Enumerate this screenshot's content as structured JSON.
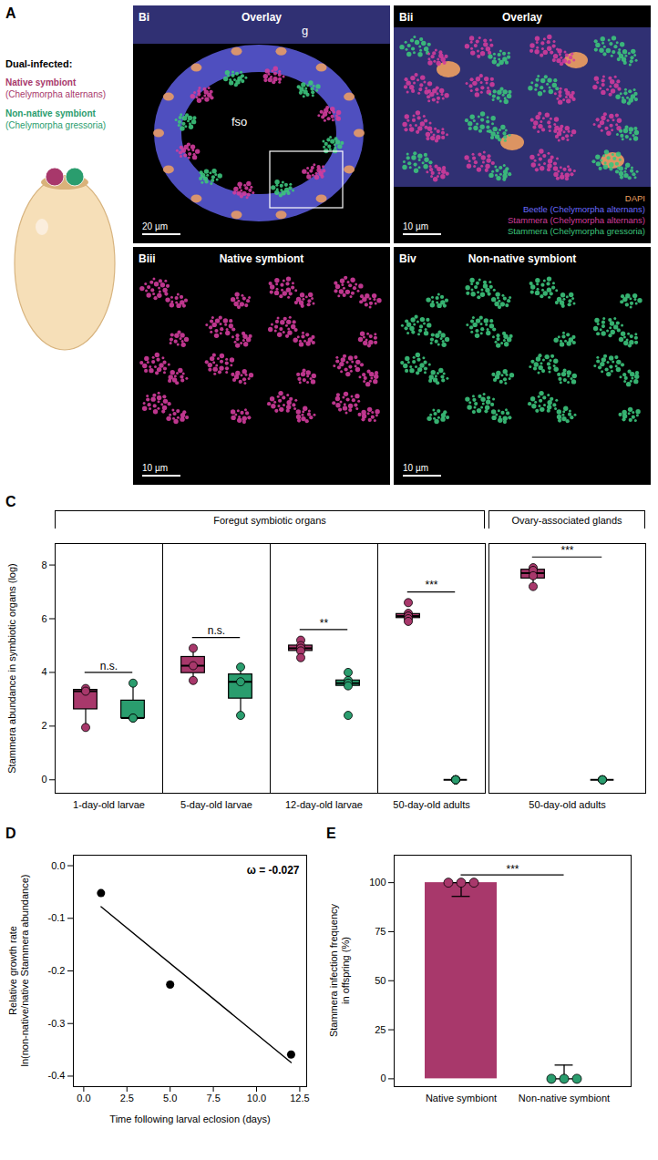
{
  "panels": {
    "A": {
      "letter": "A",
      "title": "Dual-infected:",
      "items": [
        {
          "label": "Native symbiont",
          "sublabel": "(Chelymorpha alternans)",
          "color": "#a8386b"
        },
        {
          "label": "Non-native symbiont",
          "sublabel": "(Chelymorpha gressoria)",
          "color": "#2a9d6e"
        }
      ]
    },
    "B": {
      "images": [
        {
          "letter": "Bi",
          "title": "Overlay",
          "labels": [
            "g",
            "fso"
          ],
          "scale_bar": "20 µm"
        },
        {
          "letter": "Bii",
          "title": "Overlay",
          "scale_bar": "10 µm",
          "legend": [
            {
              "label": "DAPI",
              "color": "#f0a060"
            },
            {
              "label": "Beetle (Chelymorpha alternans)",
              "color": "#6a6aff"
            },
            {
              "label": "Stammera (Chelymorpha alternans)",
              "color": "#d13c9c"
            },
            {
              "label": "Stammera (Chelymorpha gressoria)",
              "color": "#3cc47c"
            }
          ]
        },
        {
          "letter": "Biii",
          "title": "Native symbiont",
          "scale_bar": "10 µm"
        },
        {
          "letter": "Biv",
          "title": "Non-native symbiont",
          "scale_bar": "10 µm"
        }
      ]
    }
  },
  "chart_data": [
    {
      "letter": "C",
      "type": "box",
      "ylabel": "Stammera abundance in symbiotic organs (log)",
      "ylim": [
        -0.5,
        8.8
      ],
      "yticks": [
        0,
        2,
        4,
        6,
        8
      ],
      "sections": [
        {
          "title": "Foregut symbiotic organs",
          "categories": [
            "1-day-old larvae",
            "5-day-old larvae",
            "12-day-old larvae",
            "50-day-old adults"
          ],
          "series": [
            {
              "color": "#a8386b",
              "values": [
                [
                  3.4,
                  3.3,
                  1.95
                ],
                [
                  4.9,
                  4.25,
                  3.7
                ],
                [
                  5.2,
                  5.0,
                  4.9,
                  4.8,
                  4.55
                ],
                [
                  6.6,
                  6.2,
                  6.1,
                  6.1,
                  6.0,
                  5.9
                ]
              ]
            },
            {
              "color": "#2a9d6e",
              "values": [
                [
                  3.6,
                  2.3,
                  2.3
                ],
                [
                  4.2,
                  3.65,
                  2.4
                ],
                [
                  4.0,
                  3.7,
                  3.6,
                  3.5,
                  2.4
                ],
                [
                  0,
                  0,
                  0,
                  0,
                  0,
                  0
                ]
              ]
            }
          ],
          "significance": [
            "n.s.",
            "n.s.",
            "**",
            "***"
          ]
        },
        {
          "title": "Ovary-associated glands",
          "categories": [
            "50-day-old adults"
          ],
          "series": [
            {
              "color": "#a8386b",
              "values": [
                [
                  7.9,
                  7.8,
                  7.6,
                  7.2
                ]
              ]
            },
            {
              "color": "#2a9d6e",
              "values": [
                [
                  0,
                  0,
                  0,
                  0
                ]
              ]
            }
          ],
          "significance": [
            "***"
          ]
        }
      ]
    },
    {
      "letter": "D",
      "type": "scatter",
      "xlabel": "Time following larval eclosion (days)",
      "ylabel": [
        "Relative growth rate",
        "ln(non-native/native Stammera abundance)"
      ],
      "xlim": [
        -0.6,
        12.9
      ],
      "xticks": [
        {
          "value": 0,
          "label": "0.0"
        },
        {
          "value": 2.5,
          "label": "2.5"
        },
        {
          "value": 5,
          "label": "5.0"
        },
        {
          "value": 7.5,
          "label": "7.5"
        },
        {
          "value": 10,
          "label": "10.0"
        },
        {
          "value": 12.5,
          "label": "12.5"
        }
      ],
      "ylim": [
        -0.42,
        0.02
      ],
      "yticks": [
        {
          "value": 0,
          "label": "0.0"
        },
        -0.1,
        -0.2,
        -0.3,
        -0.4
      ],
      "series": [
        {
          "type": "scatter",
          "color": "#000000",
          "x": [
            1,
            5,
            12
          ],
          "values": [
            -0.052,
            -0.226,
            -0.359
          ]
        },
        {
          "type": "line",
          "color": "#000000",
          "x": [
            1,
            12
          ],
          "values": [
            -0.078,
            -0.374
          ]
        }
      ],
      "annotation": "ω = -0.027"
    },
    {
      "letter": "E",
      "type": "bar",
      "ylabel": [
        "Stammera infection frequency",
        "in offspring (%)"
      ],
      "categories": [
        "Native symbiont",
        "Non-native symbiont"
      ],
      "values": [
        100,
        0
      ],
      "colors": [
        "#a8386b",
        "#2a9d6e"
      ],
      "error_bars": [
        [
          93,
          100
        ],
        [
          0,
          7
        ]
      ],
      "points": [
        [
          100,
          100,
          100
        ],
        [
          0,
          0,
          0
        ]
      ],
      "ylim": [
        -4,
        114
      ],
      "yticks": [
        0,
        25,
        50,
        75,
        100
      ],
      "significance": "***"
    }
  ]
}
